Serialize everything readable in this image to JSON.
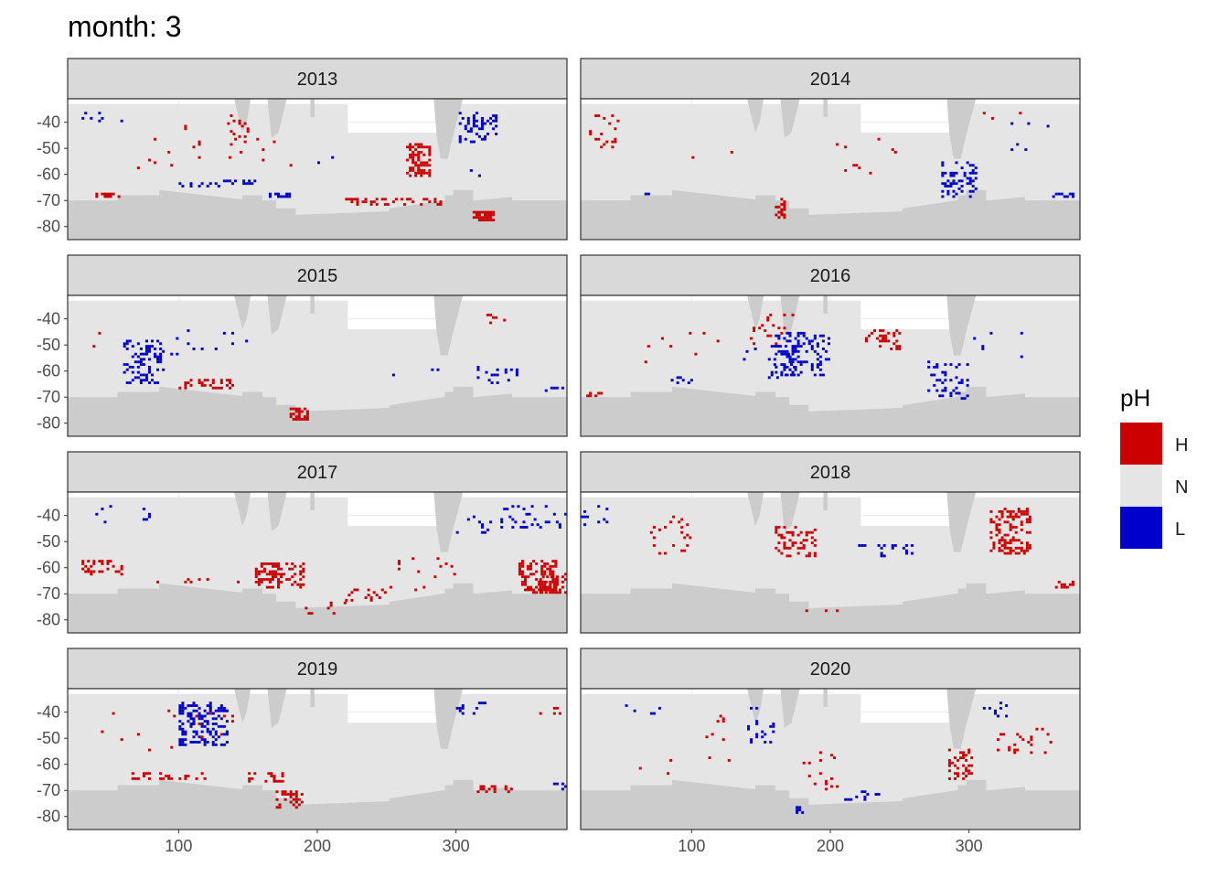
{
  "chart_data": {
    "type": "heatmap",
    "title": "month: 3",
    "facet_var": "year",
    "facets": [
      "2013",
      "2014",
      "2015",
      "2016",
      "2017",
      "2018",
      "2019",
      "2020"
    ],
    "xlabel": "",
    "ylabel": "",
    "xlim": [
      20,
      380
    ],
    "ylim": [
      -85,
      -31
    ],
    "x_ticks": [
      100,
      200,
      300
    ],
    "x_tick_labels": [
      "100",
      "200",
      "300"
    ],
    "y_ticks": [
      -40,
      -50,
      -60,
      -70,
      -80
    ],
    "y_tick_labels": [
      "-40",
      "-50",
      "-60",
      "-70",
      "-80"
    ],
    "legend": {
      "title": "pH",
      "position": "right",
      "entries": [
        {
          "key": "H",
          "label": "H",
          "color": "#cc0000"
        },
        {
          "key": "N",
          "label": "N",
          "color": "#e5e5e5"
        },
        {
          "key": "L",
          "label": "L",
          "color": "#0000cc"
        }
      ]
    },
    "colors": {
      "land": "#cccccc",
      "strip_fill": "#d9d9d9",
      "panel_border": "#333333",
      "grid": "#ebebeb"
    },
    "clusters": {
      "2013": [
        {
          "c": "H",
          "x": [
            264,
            282
          ],
          "y": [
            -61,
            -48
          ],
          "d": 0.55
        },
        {
          "c": "H",
          "x": [
            312,
            328
          ],
          "y": [
            -78,
            -74
          ],
          "d": 0.8
        },
        {
          "c": "H",
          "x": [
            220,
            290
          ],
          "y": [
            -72,
            -69
          ],
          "d": 0.35
        },
        {
          "c": "H",
          "x": [
            135,
            150
          ],
          "y": [
            -50,
            -37
          ],
          "d": 0.15
        },
        {
          "c": "H",
          "x": [
            40,
            60
          ],
          "y": [
            -69,
            -67
          ],
          "d": 0.4
        },
        {
          "c": "H",
          "x": [
            70,
            190
          ],
          "y": [
            -58,
            -40
          ],
          "d": 0.015
        },
        {
          "c": "L",
          "x": [
            300,
            330
          ],
          "y": [
            -48,
            -36
          ],
          "d": 0.25
        },
        {
          "c": "L",
          "x": [
            132,
            156
          ],
          "y": [
            -64,
            -62
          ],
          "d": 0.45
        },
        {
          "c": "L",
          "x": [
            165,
            182
          ],
          "y": [
            -69,
            -67
          ],
          "d": 0.45
        },
        {
          "c": "L",
          "x": [
            310,
            318
          ],
          "y": [
            -61,
            -58
          ],
          "d": 0.5
        },
        {
          "c": "L",
          "x": [
            100,
            130
          ],
          "y": [
            -65,
            -63
          ],
          "d": 0.3
        },
        {
          "c": "L",
          "x": [
            30,
            60
          ],
          "y": [
            -40,
            -36
          ],
          "d": 0.05
        },
        {
          "c": "L",
          "x": [
            200,
            220
          ],
          "y": [
            -56,
            -52
          ],
          "d": 0.05
        }
      ],
      "2014": [
        {
          "c": "H",
          "x": [
            26,
            50
          ],
          "y": [
            -50,
            -37
          ],
          "d": 0.12
        },
        {
          "c": "H",
          "x": [
            160,
            168
          ],
          "y": [
            -77,
            -69
          ],
          "d": 0.4
        },
        {
          "c": "H",
          "x": [
            200,
            260
          ],
          "y": [
            -60,
            -46
          ],
          "d": 0.03
        },
        {
          "c": "H",
          "x": [
            100,
            130
          ],
          "y": [
            -55,
            -42
          ],
          "d": 0.02
        },
        {
          "c": "H",
          "x": [
            310,
            340
          ],
          "y": [
            -40,
            -36
          ],
          "d": 0.05
        },
        {
          "c": "L",
          "x": [
            280,
            306
          ],
          "y": [
            -69,
            -55
          ],
          "d": 0.3
        },
        {
          "c": "L",
          "x": [
            360,
            375
          ],
          "y": [
            -69,
            -67
          ],
          "d": 0.5
        },
        {
          "c": "L",
          "x": [
            80,
            100
          ],
          "y": [
            -44,
            -37
          ],
          "d": 0.05
        },
        {
          "c": "L",
          "x": [
            330,
            365
          ],
          "y": [
            -55,
            -38
          ],
          "d": 0.02
        },
        {
          "c": "L",
          "x": [
            60,
            70
          ],
          "y": [
            -68,
            -66
          ],
          "d": 0.1
        }
      ],
      "2015": [
        {
          "c": "H",
          "x": [
            180,
            193
          ],
          "y": [
            -79,
            -74
          ],
          "d": 0.7
        },
        {
          "c": "H",
          "x": [
            100,
            140
          ],
          "y": [
            -67,
            -63
          ],
          "d": 0.3
        },
        {
          "c": "H",
          "x": [
            30,
            75
          ],
          "y": [
            -51,
            -38
          ],
          "d": 0.02
        },
        {
          "c": "H",
          "x": [
            320,
            335
          ],
          "y": [
            -42,
            -38
          ],
          "d": 0.1
        },
        {
          "c": "L",
          "x": [
            60,
            90
          ],
          "y": [
            -65,
            -48
          ],
          "d": 0.25
        },
        {
          "c": "L",
          "x": [
            90,
            150
          ],
          "y": [
            -54,
            -44
          ],
          "d": 0.03
        },
        {
          "c": "L",
          "x": [
            315,
            345
          ],
          "y": [
            -65,
            -58
          ],
          "d": 0.15
        },
        {
          "c": "L",
          "x": [
            362,
            378
          ],
          "y": [
            -68,
            -66
          ],
          "d": 0.3
        },
        {
          "c": "L",
          "x": [
            200,
            300
          ],
          "y": [
            -64,
            -58
          ],
          "d": 0.01
        }
      ],
      "2016": [
        {
          "c": "H",
          "x": [
            225,
            250
          ],
          "y": [
            -52,
            -44
          ],
          "d": 0.3
        },
        {
          "c": "H",
          "x": [
            140,
            175
          ],
          "y": [
            -50,
            -38
          ],
          "d": 0.1
        },
        {
          "c": "H",
          "x": [
            60,
            120
          ],
          "y": [
            -58,
            -45
          ],
          "d": 0.02
        },
        {
          "c": "H",
          "x": [
            24,
            36
          ],
          "y": [
            -70,
            -68
          ],
          "d": 0.4
        },
        {
          "c": "L",
          "x": [
            160,
            200
          ],
          "y": [
            -62,
            -45
          ],
          "d": 0.3
        },
        {
          "c": "L",
          "x": [
            135,
            175
          ],
          "y": [
            -63,
            -50
          ],
          "d": 0.08
        },
        {
          "c": "L",
          "x": [
            270,
            300
          ],
          "y": [
            -71,
            -56
          ],
          "d": 0.18
        },
        {
          "c": "L",
          "x": [
            303,
            345
          ],
          "y": [
            -55,
            -37
          ],
          "d": 0.02
        },
        {
          "c": "L",
          "x": [
            85,
            100
          ],
          "y": [
            -65,
            -62
          ],
          "d": 0.2
        }
      ],
      "2017": [
        {
          "c": "H",
          "x": [
            345,
            372
          ],
          "y": [
            -70,
            -57
          ],
          "d": 0.45
        },
        {
          "c": "H",
          "x": [
            155,
            190
          ],
          "y": [
            -68,
            -58
          ],
          "d": 0.4
        },
        {
          "c": "H",
          "x": [
            220,
            250
          ],
          "y": [
            -73,
            -68
          ],
          "d": 0.22
        },
        {
          "c": "H",
          "x": [
            250,
            300
          ],
          "y": [
            -70,
            -56
          ],
          "d": 0.06
        },
        {
          "c": "H",
          "x": [
            185,
            220
          ],
          "y": [
            -78,
            -73
          ],
          "d": 0.12
        },
        {
          "c": "H",
          "x": [
            30,
            60
          ],
          "y": [
            -63,
            -57
          ],
          "d": 0.35
        },
        {
          "c": "H",
          "x": [
            80,
            150
          ],
          "y": [
            -66,
            -64
          ],
          "d": 0.12
        },
        {
          "c": "H",
          "x": [
            360,
            380
          ],
          "y": [
            -70,
            -62
          ],
          "d": 0.4
        },
        {
          "c": "L",
          "x": [
            330,
            380
          ],
          "y": [
            -45,
            -36
          ],
          "d": 0.1
        },
        {
          "c": "L",
          "x": [
            22,
            80
          ],
          "y": [
            -44,
            -36
          ],
          "d": 0.05
        },
        {
          "c": "L",
          "x": [
            300,
            330
          ],
          "y": [
            -48,
            -40
          ],
          "d": 0.04
        }
      ],
      "2018": [
        {
          "c": "H",
          "x": [
            315,
            345
          ],
          "y": [
            -55,
            -37
          ],
          "d": 0.35
        },
        {
          "c": "H",
          "x": [
            160,
            190
          ],
          "y": [
            -56,
            -44
          ],
          "d": 0.3
        },
        {
          "c": "H",
          "x": [
            70,
            100
          ],
          "y": [
            -55,
            -40
          ],
          "d": 0.08
        },
        {
          "c": "H",
          "x": [
            362,
            378
          ],
          "y": [
            -68,
            -65
          ],
          "d": 0.4
        },
        {
          "c": "H",
          "x": [
            180,
            205
          ],
          "y": [
            -77,
            -75
          ],
          "d": 0.25
        },
        {
          "c": "L",
          "x": [
            220,
            260
          ],
          "y": [
            -56,
            -51
          ],
          "d": 0.12
        },
        {
          "c": "L",
          "x": [
            20,
            40
          ],
          "y": [
            -45,
            -36
          ],
          "d": 0.06
        }
      ],
      "2019": [
        {
          "c": "H",
          "x": [
            170,
            190
          ],
          "y": [
            -78,
            -70
          ],
          "d": 0.4
        },
        {
          "c": "H",
          "x": [
            150,
            175
          ],
          "y": [
            -67,
            -63
          ],
          "d": 0.35
        },
        {
          "c": "H",
          "x": [
            60,
            120
          ],
          "y": [
            -66,
            -63
          ],
          "d": 0.2
        },
        {
          "c": "H",
          "x": [
            315,
            340
          ],
          "y": [
            -71,
            -68
          ],
          "d": 0.4
        },
        {
          "c": "H",
          "x": [
            40,
            160
          ],
          "y": [
            -55,
            -37
          ],
          "d": 0.015
        },
        {
          "c": "H",
          "x": [
            360,
            380
          ],
          "y": [
            -44,
            -38
          ],
          "d": 0.1
        },
        {
          "c": "L",
          "x": [
            100,
            135
          ],
          "y": [
            -53,
            -36
          ],
          "d": 0.35
        },
        {
          "c": "L",
          "x": [
            300,
            325
          ],
          "y": [
            -42,
            -36
          ],
          "d": 0.1
        },
        {
          "c": "L",
          "x": [
            370,
            380
          ],
          "y": [
            -70,
            -67
          ],
          "d": 0.3
        }
      ],
      "2020": [
        {
          "c": "H",
          "x": [
            285,
            303
          ],
          "y": [
            -66,
            -54
          ],
          "d": 0.35
        },
        {
          "c": "H",
          "x": [
            320,
            360
          ],
          "y": [
            -56,
            -46
          ],
          "d": 0.08
        },
        {
          "c": "H",
          "x": [
            180,
            205
          ],
          "y": [
            -70,
            -55
          ],
          "d": 0.06
        },
        {
          "c": "H",
          "x": [
            110,
            130
          ],
          "y": [
            -59,
            -37
          ],
          "d": 0.04
        },
        {
          "c": "H",
          "x": [
            60,
            90
          ],
          "y": [
            -65,
            -55
          ],
          "d": 0.02
        },
        {
          "c": "L",
          "x": [
            310,
            340
          ],
          "y": [
            -42,
            -36
          ],
          "d": 0.15
        },
        {
          "c": "L",
          "x": [
            40,
            80
          ],
          "y": [
            -42,
            -37
          ],
          "d": 0.05
        },
        {
          "c": "L",
          "x": [
            140,
            160
          ],
          "y": [
            -53,
            -38
          ],
          "d": 0.08
        },
        {
          "c": "L",
          "x": [
            210,
            235
          ],
          "y": [
            -74,
            -70
          ],
          "d": 0.2
        },
        {
          "c": "L",
          "x": [
            175,
            185
          ],
          "y": [
            -79,
            -76
          ],
          "d": 0.3
        }
      ]
    }
  }
}
